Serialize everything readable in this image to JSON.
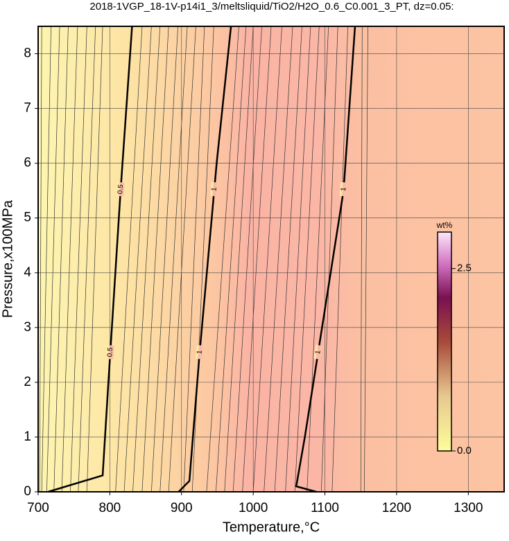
{
  "chart_data": {
    "type": "contour",
    "title": "2018-1VGP_18-1V-p14i1_3/meltsliquid/TiO2/H2O_0.6_C0.001_3_PT, dz=0.05:",
    "x_label": "Temperature,°C",
    "y_label": "Pressure,x100MPa",
    "xlim": [
      700,
      1350
    ],
    "ylim": [
      0,
      8.5
    ],
    "xticks": [
      700,
      800,
      900,
      1000,
      1100,
      1200,
      1300
    ],
    "yticks": [
      0,
      1,
      2,
      3,
      4,
      5,
      6,
      7,
      8
    ],
    "grid": true,
    "contours": [
      {
        "level": 0.5,
        "x": [
          714,
          790,
          798,
          815,
          831
        ],
        "y": [
          0,
          0.3,
          2.0,
          5.5,
          8.5
        ]
      },
      {
        "level": 1,
        "x": [
          896,
          911,
          925,
          949,
          969
        ],
        "y": [
          0,
          0.2,
          2.5,
          6.0,
          8.5
        ]
      },
      {
        "level": 1,
        "x": [
          1088,
          1060,
          1072,
          1096,
          1126,
          1142
        ],
        "y": [
          0,
          0.1,
          1.0,
          3.0,
          5.5,
          8.5
        ]
      }
    ],
    "minor_contour_y": [
      0,
      8.5
    ],
    "minor_contours": [
      [
        702,
        705
      ],
      [
        705,
        718
      ],
      [
        712,
        730
      ],
      [
        722,
        742
      ],
      [
        733,
        755
      ],
      [
        745,
        768
      ],
      [
        756,
        780
      ],
      [
        768,
        790
      ],
      [
        808,
        845
      ],
      [
        820,
        858
      ],
      [
        832,
        870
      ],
      [
        845,
        882
      ],
      [
        858,
        895
      ],
      [
        870,
        908
      ],
      [
        882,
        920
      ],
      [
        903,
        932
      ],
      [
        915,
        945
      ],
      [
        935,
        980
      ],
      [
        948,
        990
      ],
      [
        960,
        1000
      ],
      [
        972,
        1012
      ],
      [
        985,
        1025
      ],
      [
        1000,
        1040
      ],
      [
        1015,
        1055
      ],
      [
        1030,
        1068
      ],
      [
        1045,
        1080
      ],
      [
        1058,
        1092
      ],
      [
        1075,
        1105
      ],
      [
        1095,
        1118
      ],
      [
        1110,
        1132
      ],
      [
        1150,
        1152
      ],
      [
        1155,
        1160
      ]
    ],
    "colorbar": {
      "label": "wt%",
      "lim": [
        0,
        3.0
      ],
      "ticks": [
        {
          "value": 0,
          "label": "0.0"
        },
        {
          "value": 2.5,
          "label": "2.5"
        }
      ]
    }
  }
}
